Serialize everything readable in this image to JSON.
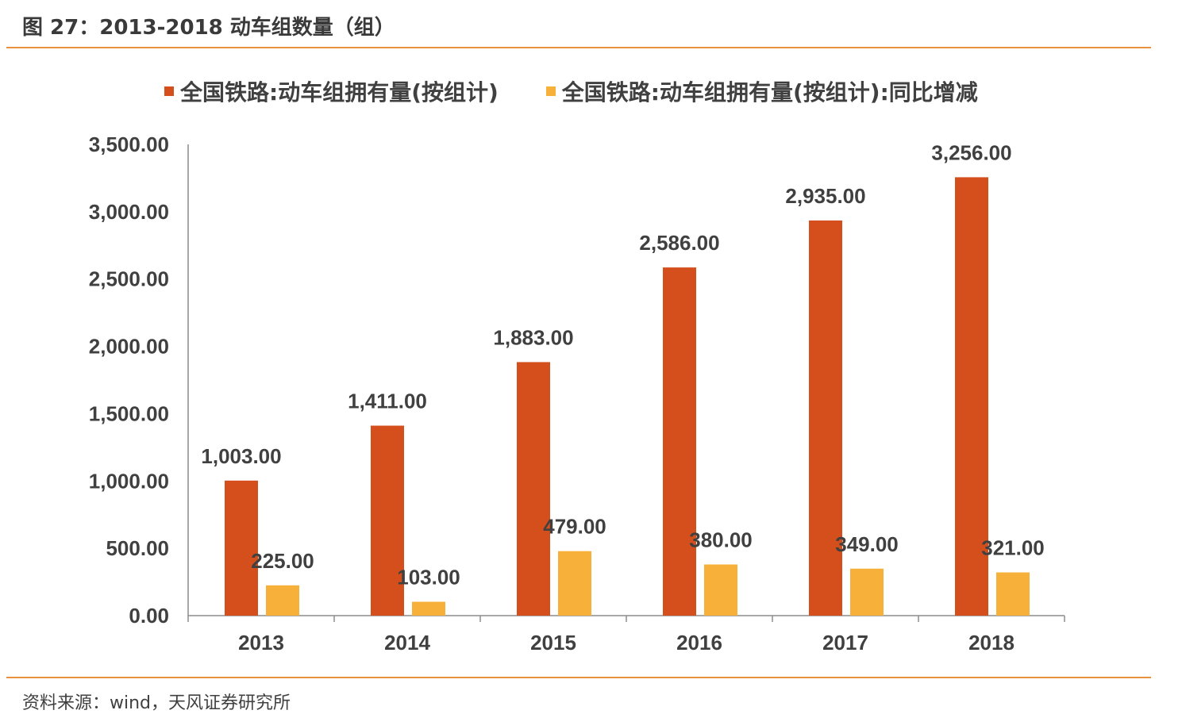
{
  "figure": {
    "title": "图 27：2013-2018 动车组数量（组）",
    "source": "资料来源：wind，天风证券研究所"
  },
  "colors": {
    "accent_rule": "#e8913f",
    "series1": "#d44f1c",
    "series2": "#f7b13b",
    "axis": "#8c8c8c",
    "text": "#404040"
  },
  "chart_data": {
    "type": "bar",
    "title": "",
    "xlabel": "",
    "ylabel": "",
    "categories": [
      "2013",
      "2014",
      "2015",
      "2016",
      "2017",
      "2018"
    ],
    "series": [
      {
        "name": "全国铁路:动车组拥有量(按组计)",
        "values": [
          1003,
          1411,
          1883,
          2586,
          2935,
          3256
        ],
        "labels": [
          "1,003.00",
          "1,411.00",
          "1,883.00",
          "2,586.00",
          "2,935.00",
          "3,256.00"
        ]
      },
      {
        "name": "全国铁路:动车组拥有量(按组计):同比增减",
        "values": [
          225,
          103,
          479,
          380,
          349,
          321
        ],
        "labels": [
          "225.00",
          "103.00",
          "479.00",
          "380.00",
          "349.00",
          "321.00"
        ]
      }
    ],
    "ylim": [
      0,
      3500
    ],
    "yticks": [
      0,
      500,
      1000,
      1500,
      2000,
      2500,
      3000,
      3500
    ],
    "ytick_labels": [
      "0.00",
      "500.00",
      "1,000.00",
      "1,500.00",
      "2,000.00",
      "2,500.00",
      "3,000.00",
      "3,500.00"
    ],
    "legend_position": "top",
    "grid": false
  }
}
